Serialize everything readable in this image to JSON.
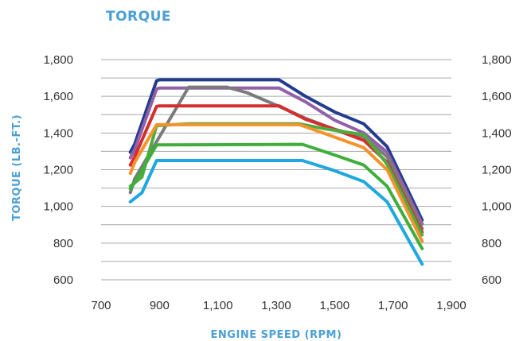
{
  "chart_data": {
    "type": "line",
    "title": "TORQUE",
    "xlabel": "ENGINE SPEED (RPM)",
    "ylabel": "TORQUE (LB.-FT.)",
    "xlim": [
      700,
      1900
    ],
    "ylim": [
      600,
      1800
    ],
    "x_ticks": [
      700,
      900,
      1100,
      1300,
      1500,
      1700,
      1900
    ],
    "x_tick_labels": [
      "700",
      "900",
      "1,100",
      "1,300",
      "1,500",
      "1,700",
      "1,900"
    ],
    "y_ticks": [
      600,
      800,
      1000,
      1200,
      1400,
      1600,
      1800
    ],
    "y_tick_labels": [
      "600",
      "800",
      "1,000",
      "1,200",
      "1,400",
      "1,600",
      "1,800"
    ],
    "grid": true,
    "accent_color": "#4a9fd4",
    "grid_color": "#a6a6a6",
    "series": [
      {
        "color": "#233d8e",
        "points": [
          [
            800,
            1295
          ],
          [
            815,
            1340
          ],
          [
            890,
            1685
          ],
          [
            900,
            1690
          ],
          [
            1310,
            1690
          ],
          [
            1400,
            1600
          ],
          [
            1500,
            1515
          ],
          [
            1600,
            1450
          ],
          [
            1680,
            1325
          ],
          [
            1800,
            925
          ]
        ]
      },
      {
        "color": "#9260a8",
        "points": [
          [
            800,
            1265
          ],
          [
            815,
            1310
          ],
          [
            890,
            1640
          ],
          [
            900,
            1645
          ],
          [
            1310,
            1645
          ],
          [
            1400,
            1570
          ],
          [
            1500,
            1470
          ],
          [
            1600,
            1400
          ],
          [
            1680,
            1295
          ],
          [
            1800,
            905
          ]
        ]
      },
      {
        "color": "#7b7b7b",
        "points": [
          [
            800,
            1075
          ],
          [
            815,
            1150
          ],
          [
            1000,
            1650
          ],
          [
            1130,
            1650
          ],
          [
            1200,
            1620
          ],
          [
            1310,
            1545
          ],
          [
            1400,
            1480
          ],
          [
            1500,
            1420
          ],
          [
            1600,
            1380
          ],
          [
            1680,
            1270
          ],
          [
            1800,
            880
          ]
        ]
      },
      {
        "color": "#d42e2e",
        "points": [
          [
            800,
            1225
          ],
          [
            815,
            1270
          ],
          [
            890,
            1545
          ],
          [
            900,
            1548
          ],
          [
            1310,
            1548
          ],
          [
            1400,
            1475
          ],
          [
            1500,
            1420
          ],
          [
            1600,
            1360
          ],
          [
            1680,
            1240
          ],
          [
            1800,
            860
          ]
        ]
      },
      {
        "color": "#4dac3e",
        "points": [
          [
            800,
            1110
          ],
          [
            840,
            1160
          ],
          [
            890,
            1440
          ],
          [
            1000,
            1450
          ],
          [
            1380,
            1450
          ],
          [
            1460,
            1425
          ],
          [
            1600,
            1390
          ],
          [
            1680,
            1230
          ],
          [
            1800,
            845
          ]
        ]
      },
      {
        "color": "#f5922b",
        "points": [
          [
            800,
            1180
          ],
          [
            815,
            1240
          ],
          [
            890,
            1445
          ],
          [
            1380,
            1445
          ],
          [
            1460,
            1400
          ],
          [
            1600,
            1320
          ],
          [
            1680,
            1200
          ],
          [
            1800,
            810
          ]
        ]
      },
      {
        "color": "#3fae3c",
        "points": [
          [
            800,
            1095
          ],
          [
            815,
            1130
          ],
          [
            890,
            1335
          ],
          [
            1390,
            1338
          ],
          [
            1500,
            1280
          ],
          [
            1600,
            1225
          ],
          [
            1680,
            1110
          ],
          [
            1800,
            770
          ]
        ]
      },
      {
        "color": "#1fa8e0",
        "points": [
          [
            800,
            1025
          ],
          [
            840,
            1075
          ],
          [
            890,
            1250
          ],
          [
            1390,
            1250
          ],
          [
            1500,
            1195
          ],
          [
            1600,
            1135
          ],
          [
            1680,
            1025
          ],
          [
            1800,
            685
          ]
        ]
      }
    ]
  }
}
